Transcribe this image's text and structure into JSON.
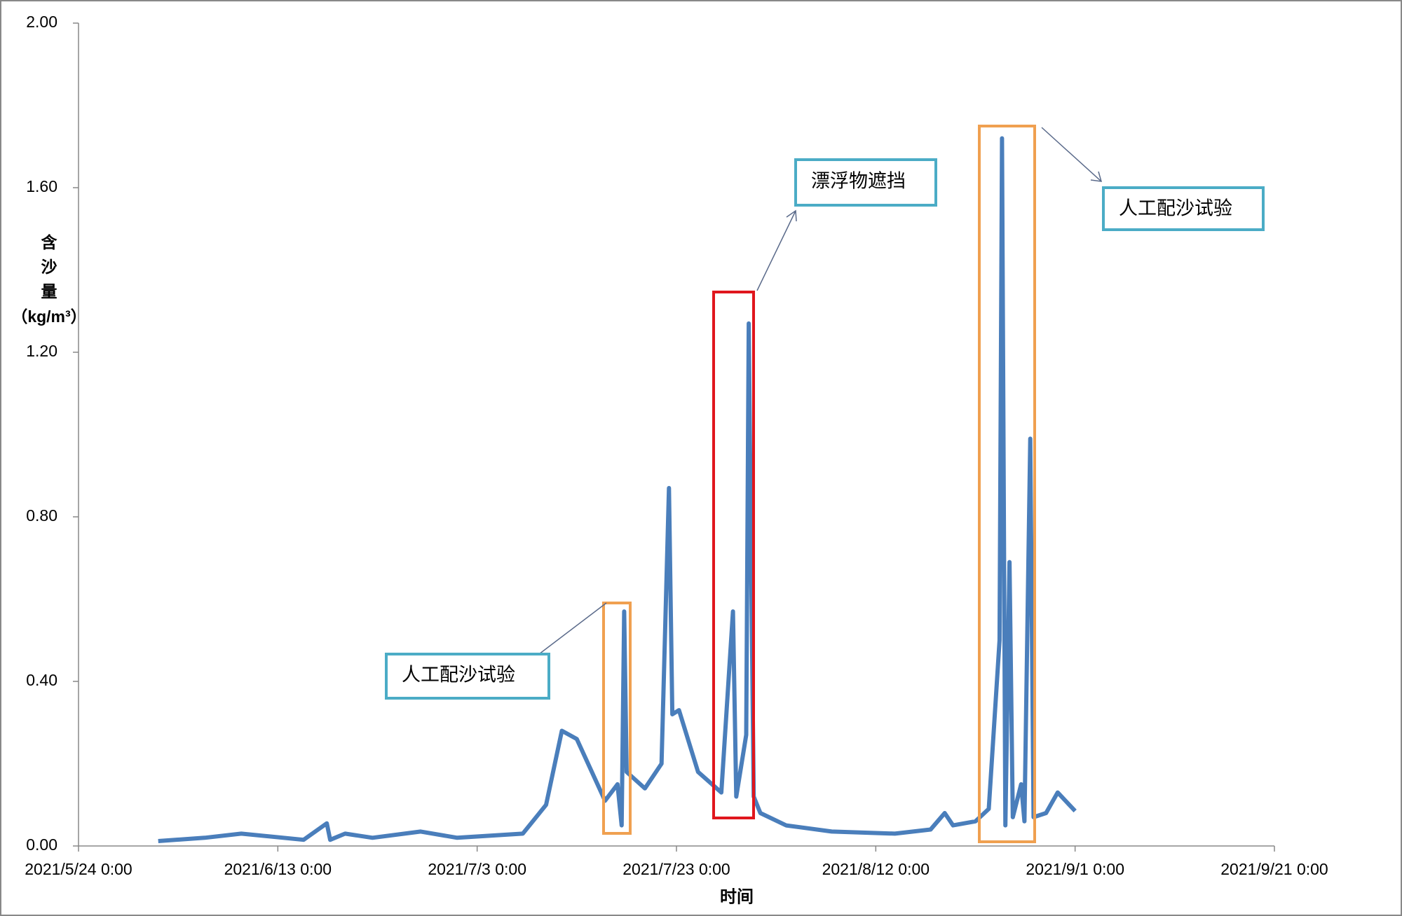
{
  "chart_data": {
    "type": "line",
    "x_label": "时间",
    "y_label": [
      "含",
      "沙",
      "量",
      "（kg/m³）"
    ],
    "xlim": [
      "2021/5/24 0:00",
      "2021/9/21 0:00"
    ],
    "xticks": [
      "2021/5/24 0:00",
      "2021/6/13 0:00",
      "2021/7/3 0:00",
      "2021/7/23 0:00",
      "2021/8/12 0:00",
      "2021/9/1 0:00",
      "2021/9/21 0:00"
    ],
    "ylim": [
      0,
      2
    ],
    "yticks": [
      {
        "value": 0,
        "label": "0.00"
      },
      {
        "value": 0.4,
        "label": "0.40"
      },
      {
        "value": 0.8,
        "label": "0.80"
      },
      {
        "value": 1.2,
        "label": "1.20"
      },
      {
        "value": 1.6,
        "label": "1.60"
      },
      {
        "value": 2,
        "label": "2.00"
      }
    ],
    "grid": false,
    "series": [
      {
        "color": "#4a7ebb",
        "x": [
          "2021/6/1 0:00",
          "2021/6/5 16:00",
          "2021/6/9 8:00",
          "2021/6/15 14:00",
          "2021/6/17 22:00",
          "2021/6/18 6:00",
          "2021/6/19 18:00",
          "2021/6/22 12:00",
          "2021/6/27 8:00",
          "2021/7/1 0:00",
          "2021/7/7 14:00",
          "2021/7/9 22:00",
          "2021/7/11 12:00",
          "2021/7/13 0:00",
          "2021/7/15 20:00",
          "2021/7/17 2:00",
          "2021/7/17 12:00",
          "2021/7/17 18:00",
          "2021/7/18 0:00",
          "2021/7/19 20:00",
          "2021/7/21 12:00",
          "2021/7/22 6:00",
          "2021/7/22 14:00",
          "2021/7/23 6:00",
          "2021/7/25 4:00",
          "2021/7/27 12:00",
          "2021/7/28 16:00",
          "2021/7/29 0:00",
          "2021/7/30 0:00",
          "2021/7/30 6:00",
          "2021/7/30 12:00",
          "2021/7/30 18:00",
          "2021/7/31 10:00",
          "2021/8/3 0:00",
          "2021/8/7 14:00",
          "2021/8/13 22:00",
          "2021/8/17 12:00",
          "2021/8/18 22:00",
          "2021/8/19 18:00",
          "2021/8/22 0:00",
          "2021/8/23 8:00",
          "2021/8/24 10:00",
          "2021/8/24 16:00",
          "2021/8/25 0:00",
          "2021/8/25 10:00",
          "2021/8/25 18:00",
          "2021/8/26 14:00",
          "2021/8/26 22:00",
          "2021/8/27 12:00",
          "2021/8/27 20:00",
          "2021/8/29 2:00",
          "2021/8/30 6:00",
          "2021/9/1 0:00"
        ],
        "values": [
          0.012,
          0.02,
          0.03,
          0.015,
          0.055,
          0.015,
          0.03,
          0.02,
          0.035,
          0.02,
          0.03,
          0.1,
          0.28,
          0.26,
          0.11,
          0.15,
          0.05,
          0.57,
          0.18,
          0.14,
          0.2,
          0.87,
          0.32,
          0.33,
          0.18,
          0.13,
          0.57,
          0.12,
          0.27,
          1.27,
          0.68,
          0.12,
          0.08,
          0.05,
          0.035,
          0.03,
          0.04,
          0.08,
          0.05,
          0.06,
          0.09,
          0.5,
          1.72,
          0.05,
          0.69,
          0.07,
          0.15,
          0.06,
          0.99,
          0.07,
          0.08,
          0.13,
          0.085
        ]
      }
    ],
    "annotations": [
      "人工配沙试验",
      "漂浮物遮挡",
      "人工配沙试验"
    ]
  }
}
